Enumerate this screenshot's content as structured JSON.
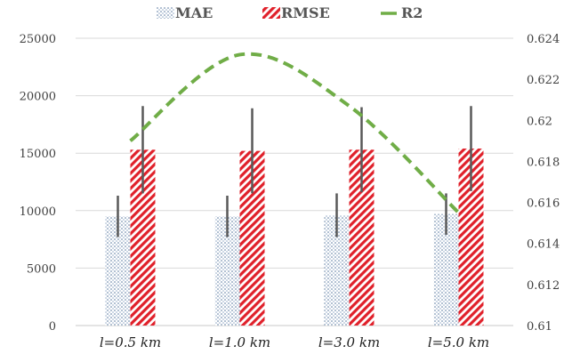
{
  "chart_data": {
    "type": "bar",
    "categories": [
      "l=0.5 km",
      "l=1.0 km",
      "l=3.0 km",
      "l=5.0 km"
    ],
    "series": [
      {
        "name": "MAE",
        "type": "bar",
        "axis": "left",
        "values": [
          9500,
          9500,
          9600,
          9700
        ],
        "error": [
          1800,
          1800,
          1900,
          1800
        ],
        "color": "#5b7fa8",
        "pattern": "dotted"
      },
      {
        "name": "RMSE",
        "type": "bar",
        "axis": "left",
        "values": [
          15300,
          15200,
          15300,
          15400
        ],
        "error": [
          3800,
          3700,
          3700,
          3700
        ],
        "color": "#e0202a",
        "pattern": "diagonal"
      },
      {
        "name": "R2",
        "type": "line",
        "axis": "right",
        "style": "dashed",
        "values": [
          0.619,
          0.6232,
          0.6207,
          0.6155
        ],
        "color": "#70ad47"
      }
    ],
    "y_left": {
      "min": 0,
      "max": 25000,
      "ticks": [
        0,
        5000,
        10000,
        15000,
        20000,
        25000
      ]
    },
    "y_right": {
      "min": 0.61,
      "max": 0.624,
      "ticks": [
        "0.61",
        "0.612",
        "0.614",
        "0.616",
        "0.618",
        "0.62",
        "0.622",
        "0.624"
      ]
    },
    "grid": true,
    "legend": {
      "position": "top",
      "items": [
        "MAE",
        "RMSE",
        "R2"
      ]
    }
  }
}
